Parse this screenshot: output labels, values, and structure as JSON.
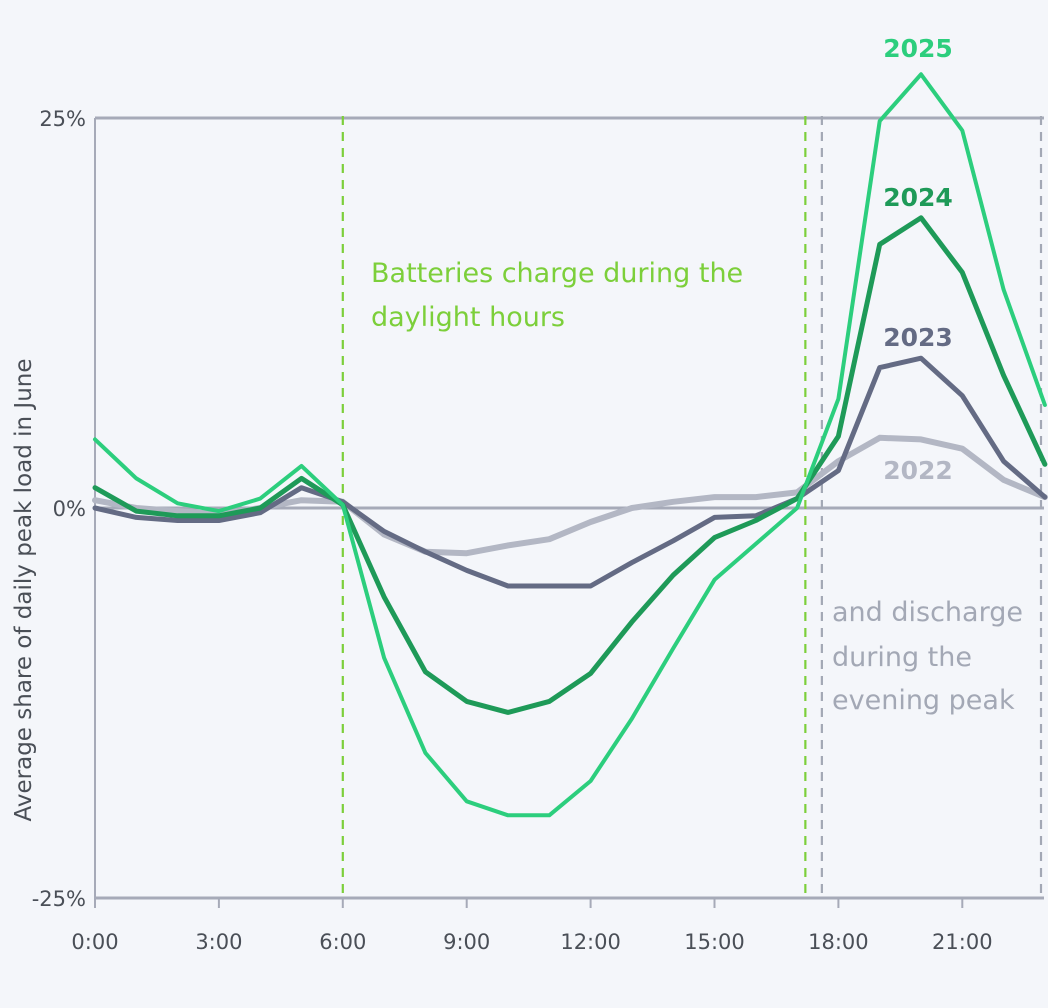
{
  "chart_data": {
    "type": "line",
    "ylabel": "Average share of daily peak load in June",
    "xlim": [
      0,
      23
    ],
    "ylim": [
      -25,
      25
    ],
    "x_ticks": [
      {
        "label": "0:00",
        "value": 0
      },
      {
        "label": "3:00",
        "value": 3
      },
      {
        "label": "6:00",
        "value": 6
      },
      {
        "label": "9:00",
        "value": 9
      },
      {
        "label": "12:00",
        "value": 12
      },
      {
        "label": "15:00",
        "value": 15
      },
      {
        "label": "18:00",
        "value": 18
      },
      {
        "label": "21:00",
        "value": 21
      }
    ],
    "y_ticks": [
      {
        "label": "25%",
        "value": 25
      },
      {
        "label": "0%",
        "value": 0
      },
      {
        "label": "-25%",
        "value": -25
      }
    ],
    "x": [
      0,
      1,
      2,
      3,
      4,
      5,
      6,
      7,
      8,
      9,
      10,
      11,
      12,
      13,
      14,
      15,
      16,
      17,
      18,
      19,
      20,
      21,
      22,
      23
    ],
    "series": [
      {
        "name": "2022",
        "color": "#b3b7c4",
        "values": [
          0.5,
          0,
          -0.2,
          -0.4,
          0,
          0.5,
          0.4,
          -1.7,
          -2.8,
          -2.9,
          -2.4,
          -2,
          -0.9,
          0,
          0.4,
          0.7,
          0.7,
          1,
          3,
          4.5,
          4.4,
          3.8,
          1.8,
          0.7
        ]
      },
      {
        "name": "2023",
        "color": "#646b84",
        "values": [
          0,
          -0.6,
          -0.8,
          -0.8,
          -0.3,
          1.3,
          0.4,
          -1.5,
          -2.8,
          -4,
          -5,
          -5,
          -5,
          -3.5,
          -2.1,
          -0.6,
          -0.5,
          0.6,
          2.4,
          9,
          9.6,
          7.2,
          3,
          0.7
        ]
      },
      {
        "name": "2024",
        "color": "#1e9a58",
        "values": [
          1.3,
          -0.2,
          -0.5,
          -0.5,
          0,
          1.9,
          0.2,
          -5.7,
          -10.5,
          -12.4,
          -13.1,
          -12.4,
          -10.6,
          -7.3,
          -4.3,
          -1.9,
          -0.8,
          0.6,
          4.6,
          16.9,
          18.6,
          15.1,
          8.5,
          2.8
        ]
      },
      {
        "name": "2025",
        "color": "#2cce7d",
        "values": [
          4.4,
          1.9,
          0.3,
          -0.2,
          0.6,
          2.7,
          0.2,
          -9.6,
          -15.7,
          -18.8,
          -19.7,
          -19.7,
          -17.5,
          -13.5,
          -9,
          -4.6,
          -2.3,
          0,
          7,
          24.8,
          27.8,
          24.2,
          14,
          6.6
        ]
      }
    ],
    "series_labels": [
      {
        "text": "2025",
        "color": "#2cce7d"
      },
      {
        "text": "2024",
        "color": "#1e9a58"
      },
      {
        "text": "2023",
        "color": "#646b84"
      },
      {
        "text": "2022",
        "color": "#b3b7c4"
      }
    ],
    "reference_lines": [
      {
        "x": 6,
        "color": "#7ccf3a",
        "style": "dashed"
      },
      {
        "x": 17.2,
        "color": "#7ccf3a",
        "style": "dashed"
      },
      {
        "x": 17.6,
        "color": "#a3a8b5",
        "style": "dashed"
      },
      {
        "x": 23.9,
        "color": "#a3a8b5",
        "style": "dashed"
      }
    ],
    "annotations": [
      {
        "lines": [
          "Batteries charge during the",
          "daylight hours"
        ],
        "color": "#7ccf3a"
      },
      {
        "lines": [
          "and discharge",
          "during the",
          "evening peak"
        ],
        "color": "#a3a8b5"
      }
    ],
    "grid_color": "#a6aab8"
  }
}
